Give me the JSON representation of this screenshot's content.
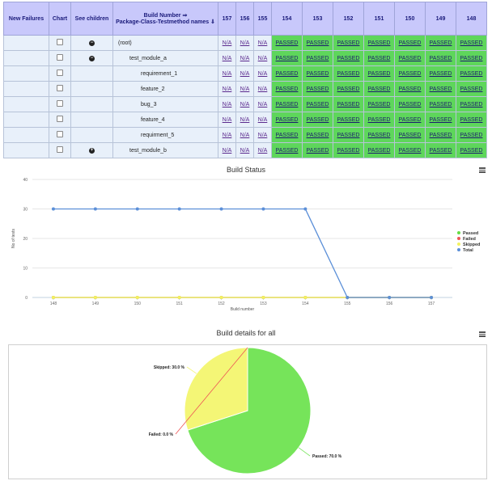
{
  "table": {
    "headers": {
      "new_failures": "New Failures",
      "chart": "Chart",
      "see_children": "See children",
      "build_number_line1": "Build Number ⇒",
      "build_number_line2": "Package-Class-Testmethod names ⇓",
      "builds": [
        "157",
        "156",
        "155",
        "154",
        "153",
        "152",
        "151",
        "150",
        "149",
        "148"
      ]
    },
    "rows": [
      {
        "name": "(root)",
        "indent": 0,
        "toggle": "minus",
        "cells": [
          "N/A",
          "N/A",
          "N/A",
          "PASSED",
          "PASSED",
          "PASSED",
          "PASSED",
          "PASSED",
          "PASSED",
          "PASSED"
        ]
      },
      {
        "name": "test_module_a",
        "indent": 1,
        "toggle": "minus",
        "cells": [
          "N/A",
          "N/A",
          "N/A",
          "PASSED",
          "PASSED",
          "PASSED",
          "PASSED",
          "PASSED",
          "PASSED",
          "PASSED"
        ]
      },
      {
        "name": "requirement_1",
        "indent": 2,
        "toggle": "",
        "cells": [
          "N/A",
          "N/A",
          "N/A",
          "PASSED",
          "PASSED",
          "PASSED",
          "PASSED",
          "PASSED",
          "PASSED",
          "PASSED"
        ]
      },
      {
        "name": "feature_2",
        "indent": 2,
        "toggle": "",
        "cells": [
          "N/A",
          "N/A",
          "N/A",
          "PASSED",
          "PASSED",
          "PASSED",
          "PASSED",
          "PASSED",
          "PASSED",
          "PASSED"
        ]
      },
      {
        "name": "bug_3",
        "indent": 2,
        "toggle": "",
        "cells": [
          "N/A",
          "N/A",
          "N/A",
          "PASSED",
          "PASSED",
          "PASSED",
          "PASSED",
          "PASSED",
          "PASSED",
          "PASSED"
        ]
      },
      {
        "name": "feature_4",
        "indent": 2,
        "toggle": "",
        "cells": [
          "N/A",
          "N/A",
          "N/A",
          "PASSED",
          "PASSED",
          "PASSED",
          "PASSED",
          "PASSED",
          "PASSED",
          "PASSED"
        ]
      },
      {
        "name": "requirment_5",
        "indent": 2,
        "toggle": "",
        "cells": [
          "N/A",
          "N/A",
          "N/A",
          "PASSED",
          "PASSED",
          "PASSED",
          "PASSED",
          "PASSED",
          "PASSED",
          "PASSED"
        ]
      },
      {
        "name": "test_module_b",
        "indent": 1,
        "toggle": "plus",
        "cells": [
          "N/A",
          "N/A",
          "N/A",
          "PASSED",
          "PASSED",
          "PASSED",
          "PASSED",
          "PASSED",
          "PASSED",
          "PASSED"
        ]
      }
    ]
  },
  "chart_data": [
    {
      "type": "line",
      "title": "Build Status",
      "xlabel": "Build number",
      "ylabel": "No of tests",
      "x": [
        "148",
        "149",
        "150",
        "151",
        "152",
        "153",
        "154",
        "155",
        "156",
        "157"
      ],
      "ylim": [
        0,
        40
      ],
      "yticks": [
        "0",
        "10",
        "20",
        "30",
        "40"
      ],
      "grid": true,
      "legend": "right",
      "series": [
        {
          "name": "Passed",
          "color": "#66dd44",
          "values": [
            0,
            0,
            0,
            0,
            0,
            0,
            0,
            0,
            0,
            0
          ]
        },
        {
          "name": "Failed",
          "color": "#ee5555",
          "values": [
            0,
            0,
            0,
            0,
            0,
            0,
            0,
            0,
            0,
            0
          ]
        },
        {
          "name": "Skipped",
          "color": "#f2f260",
          "values": [
            0,
            0,
            0,
            0,
            0,
            0,
            0,
            0,
            0,
            0
          ]
        },
        {
          "name": "Total",
          "color": "#5b8fd8",
          "values": [
            30,
            30,
            30,
            30,
            30,
            30,
            30,
            0,
            0,
            0
          ]
        }
      ]
    },
    {
      "type": "pie",
      "title": "Build details for all",
      "slices": [
        {
          "name": "Passed",
          "label": "Passed: 70.0 %",
          "value": 70,
          "color": "#76e45a"
        },
        {
          "name": "Skipped",
          "label": "Skipped: 30.0 %",
          "value": 30,
          "color": "#f4f676"
        },
        {
          "name": "Failed",
          "label": "Failed: 0.0 %",
          "value": 0,
          "color": "#ee5555"
        }
      ]
    }
  ]
}
